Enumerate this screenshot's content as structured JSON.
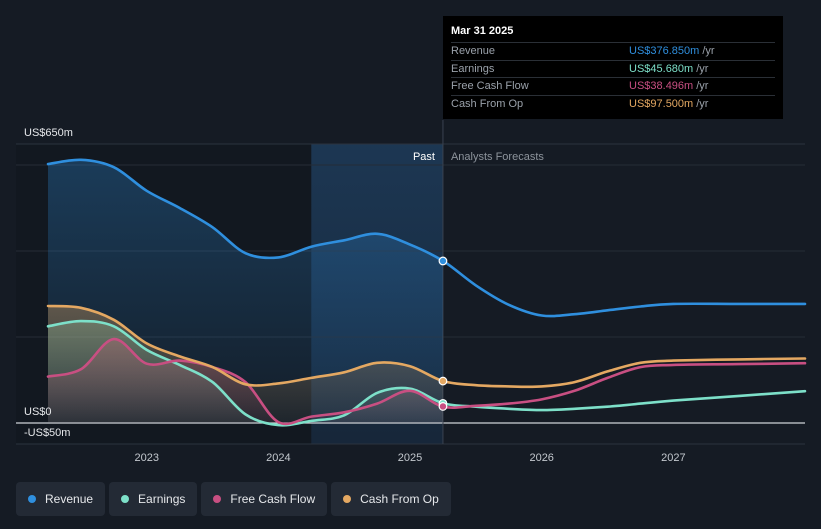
{
  "colors": {
    "background": "#151b24",
    "revenue": "#2f8fde",
    "earnings": "#7de0c9",
    "free_cash_flow": "#c84f82",
    "cash_from_op": "#e4a862",
    "past_highlight": "#1b3550"
  },
  "chart_data": {
    "type": "line",
    "y_axis": {
      "top_label": "US$650m",
      "zero_label": "US$0",
      "bottom_label": "-US$50m",
      "ylim": [
        -50,
        650
      ]
    },
    "x_axis": {
      "ticks": [
        "2023",
        "2024",
        "2025",
        "2026",
        "2027"
      ],
      "xlim": [
        2022.25,
        2028.0
      ]
    },
    "past_label": "Past",
    "forecast_label": "Analysts Forecasts",
    "past_highlight_range": [
      2024.25,
      2025.25
    ],
    "divider_x": 2025.25,
    "series": [
      {
        "name": "Revenue",
        "key": "revenue",
        "points": [
          [
            2022.25,
            602
          ],
          [
            2022.5,
            612
          ],
          [
            2022.75,
            595
          ],
          [
            2023.0,
            540
          ],
          [
            2023.25,
            500
          ],
          [
            2023.5,
            455
          ],
          [
            2023.75,
            395
          ],
          [
            2024.0,
            385
          ],
          [
            2024.25,
            410
          ],
          [
            2024.5,
            425
          ],
          [
            2024.75,
            440
          ],
          [
            2025.0,
            415
          ],
          [
            2025.25,
            377
          ],
          [
            2025.5,
            320
          ],
          [
            2025.75,
            275
          ],
          [
            2026.0,
            250
          ],
          [
            2026.25,
            253
          ],
          [
            2026.5,
            262
          ],
          [
            2026.75,
            271
          ],
          [
            2027.0,
            277
          ],
          [
            2027.5,
            277
          ],
          [
            2028.0,
            277
          ]
        ]
      },
      {
        "name": "Earnings",
        "key": "earnings",
        "points": [
          [
            2022.25,
            225
          ],
          [
            2022.5,
            237
          ],
          [
            2022.75,
            225
          ],
          [
            2023.0,
            170
          ],
          [
            2023.25,
            135
          ],
          [
            2023.5,
            95
          ],
          [
            2023.75,
            20
          ],
          [
            2024.0,
            -5
          ],
          [
            2024.25,
            5
          ],
          [
            2024.5,
            18
          ],
          [
            2024.75,
            70
          ],
          [
            2025.0,
            80
          ],
          [
            2025.25,
            46
          ],
          [
            2025.5,
            38
          ],
          [
            2025.75,
            33
          ],
          [
            2026.0,
            30
          ],
          [
            2026.25,
            33
          ],
          [
            2026.5,
            38
          ],
          [
            2026.75,
            45
          ],
          [
            2027.0,
            52
          ],
          [
            2027.5,
            63
          ],
          [
            2028.0,
            74
          ]
        ]
      },
      {
        "name": "Free Cash Flow",
        "key": "free_cash_flow",
        "points": [
          [
            2022.25,
            108
          ],
          [
            2022.5,
            125
          ],
          [
            2022.75,
            195
          ],
          [
            2023.0,
            138
          ],
          [
            2023.25,
            145
          ],
          [
            2023.5,
            130
          ],
          [
            2023.75,
            95
          ],
          [
            2024.0,
            2
          ],
          [
            2024.25,
            15
          ],
          [
            2024.5,
            25
          ],
          [
            2024.75,
            45
          ],
          [
            2025.0,
            75
          ],
          [
            2025.25,
            38
          ],
          [
            2025.5,
            40
          ],
          [
            2025.75,
            45
          ],
          [
            2026.0,
            55
          ],
          [
            2026.25,
            75
          ],
          [
            2026.5,
            105
          ],
          [
            2026.75,
            130
          ],
          [
            2027.0,
            135
          ],
          [
            2027.5,
            137
          ],
          [
            2028.0,
            139
          ]
        ]
      },
      {
        "name": "Cash From Op",
        "key": "cash_from_op",
        "points": [
          [
            2022.25,
            272
          ],
          [
            2022.5,
            268
          ],
          [
            2022.75,
            240
          ],
          [
            2023.0,
            185
          ],
          [
            2023.25,
            155
          ],
          [
            2023.5,
            130
          ],
          [
            2023.75,
            90
          ],
          [
            2024.0,
            92
          ],
          [
            2024.25,
            105
          ],
          [
            2024.5,
            118
          ],
          [
            2024.75,
            140
          ],
          [
            2025.0,
            132
          ],
          [
            2025.25,
            97.5
          ],
          [
            2025.5,
            88
          ],
          [
            2025.75,
            85
          ],
          [
            2026.0,
            85
          ],
          [
            2026.25,
            95
          ],
          [
            2026.5,
            120
          ],
          [
            2026.75,
            140
          ],
          [
            2027.0,
            145
          ],
          [
            2027.5,
            148
          ],
          [
            2028.0,
            150
          ]
        ]
      }
    ],
    "markers": [
      {
        "series": "revenue",
        "x": 2025.25,
        "y": 376.85
      },
      {
        "series": "earnings",
        "x": 2025.25,
        "y": 45.68
      },
      {
        "series": "free_cash_flow",
        "x": 2025.25,
        "y": 38.496
      },
      {
        "series": "cash_from_op",
        "x": 2025.25,
        "y": 97.5
      }
    ]
  },
  "tooltip": {
    "date": "Mar 31 2025",
    "rows": [
      {
        "label": "Revenue",
        "value": "US$376.850m",
        "unit": "/yr",
        "color": "#2f8fde"
      },
      {
        "label": "Earnings",
        "value": "US$45.680m",
        "unit": "/yr",
        "color": "#7de0c9"
      },
      {
        "label": "Free Cash Flow",
        "value": "US$38.496m",
        "unit": "/yr",
        "color": "#c84f82"
      },
      {
        "label": "Cash From Op",
        "value": "US$97.500m",
        "unit": "/yr",
        "color": "#e4a862"
      }
    ]
  },
  "legend": [
    {
      "label": "Revenue",
      "color": "#2f8fde"
    },
    {
      "label": "Earnings",
      "color": "#7de0c9"
    },
    {
      "label": "Free Cash Flow",
      "color": "#c84f82"
    },
    {
      "label": "Cash From Op",
      "color": "#e4a862"
    }
  ]
}
